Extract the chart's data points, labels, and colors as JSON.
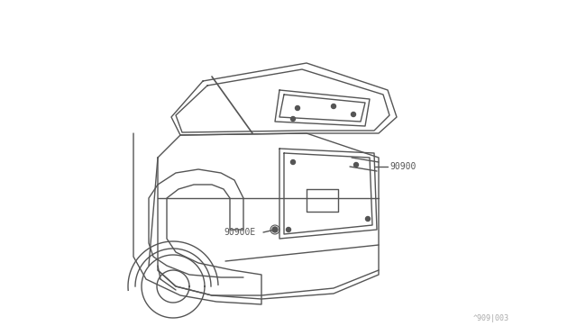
{
  "background_color": "#ffffff",
  "line_color": "#555555",
  "text_color": "#555555",
  "label_90900": "90900",
  "label_90900E": "90900E",
  "watermark": "^909|003",
  "fig_width": 6.4,
  "fig_height": 3.72,
  "dpi": 100
}
